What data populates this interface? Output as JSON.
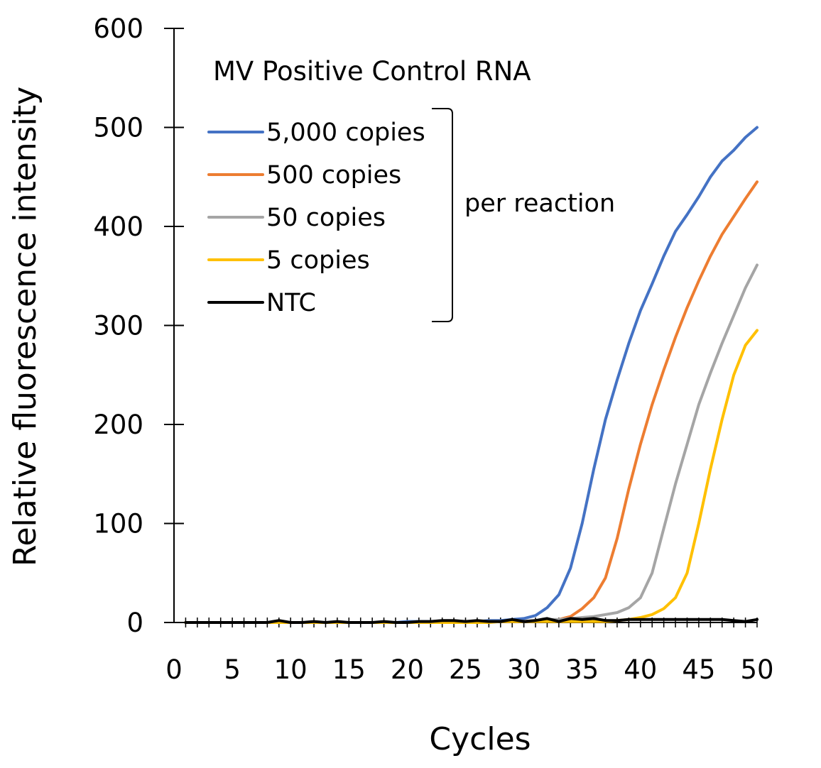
{
  "chart_data": {
    "type": "line",
    "title": "MV Positive Control RNA",
    "xlabel": "Cycles",
    "ylabel": "Relative fluorescence intensity",
    "xlim": [
      0,
      50
    ],
    "ylim": [
      0,
      600
    ],
    "x_ticks": [
      0,
      5,
      10,
      15,
      20,
      25,
      30,
      35,
      40,
      45,
      50
    ],
    "y_ticks": [
      0,
      100,
      200,
      300,
      400,
      500,
      600
    ],
    "x": [
      1,
      2,
      3,
      4,
      5,
      6,
      7,
      8,
      9,
      10,
      11,
      12,
      13,
      14,
      15,
      16,
      17,
      18,
      19,
      20,
      21,
      22,
      23,
      24,
      25,
      26,
      27,
      28,
      29,
      30,
      31,
      32,
      33,
      34,
      35,
      36,
      37,
      38,
      39,
      40,
      41,
      42,
      43,
      44,
      45,
      46,
      47,
      48,
      49,
      50
    ],
    "legend_note": "per reaction",
    "grid": false,
    "series": [
      {
        "name": "5,000 copies",
        "color": "#4472C4",
        "values": [
          0,
          0,
          0,
          0,
          0,
          0,
          0,
          0,
          0,
          0,
          0,
          0,
          0,
          0,
          0,
          0,
          0,
          0,
          0,
          1,
          1,
          1,
          1,
          1,
          1,
          1,
          2,
          2,
          3,
          4,
          7,
          15,
          28,
          55,
          100,
          155,
          205,
          245,
          282,
          315,
          342,
          370,
          395,
          412,
          430,
          450,
          466,
          477,
          490,
          500
        ]
      },
      {
        "name": "500 copies",
        "color": "#ED7D31",
        "values": [
          0,
          0,
          0,
          0,
          0,
          0,
          0,
          0,
          0,
          0,
          0,
          0,
          0,
          0,
          0,
          0,
          0,
          0,
          0,
          0,
          0,
          0,
          0,
          0,
          1,
          1,
          1,
          1,
          1,
          1,
          2,
          2,
          3,
          6,
          14,
          25,
          45,
          85,
          135,
          180,
          220,
          255,
          288,
          318,
          345,
          370,
          392,
          410,
          428,
          445
        ]
      },
      {
        "name": "50 copies",
        "color": "#A5A5A5",
        "values": [
          0,
          0,
          0,
          0,
          0,
          0,
          0,
          0,
          0,
          0,
          0,
          0,
          0,
          0,
          0,
          0,
          0,
          0,
          0,
          0,
          0,
          0,
          0,
          0,
          1,
          1,
          1,
          1,
          1,
          1,
          2,
          3,
          3,
          4,
          5,
          6,
          8,
          10,
          15,
          25,
          50,
          95,
          140,
          180,
          220,
          252,
          282,
          310,
          338,
          361
        ]
      },
      {
        "name": "5 copies",
        "color": "#FFC000",
        "values": [
          0,
          0,
          0,
          0,
          0,
          0,
          0,
          0,
          0,
          0,
          0,
          0,
          0,
          0,
          0,
          0,
          0,
          0,
          0,
          0,
          0,
          0,
          0,
          0,
          0,
          0,
          0,
          1,
          1,
          1,
          1,
          1,
          1,
          1,
          1,
          1,
          1,
          2,
          3,
          5,
          8,
          14,
          25,
          50,
          100,
          155,
          205,
          250,
          280,
          295
        ]
      },
      {
        "name": "NTC",
        "color": "#000000",
        "values": [
          0,
          0,
          0,
          0,
          0,
          0,
          0,
          0,
          2,
          0,
          0,
          1,
          0,
          1,
          0,
          0,
          0,
          1,
          0,
          0,
          1,
          1,
          2,
          2,
          1,
          2,
          1,
          1,
          3,
          1,
          2,
          4,
          1,
          4,
          3,
          4,
          2,
          2,
          3,
          3,
          3,
          3,
          3,
          3,
          3,
          3,
          3,
          2,
          1,
          3
        ]
      }
    ]
  }
}
